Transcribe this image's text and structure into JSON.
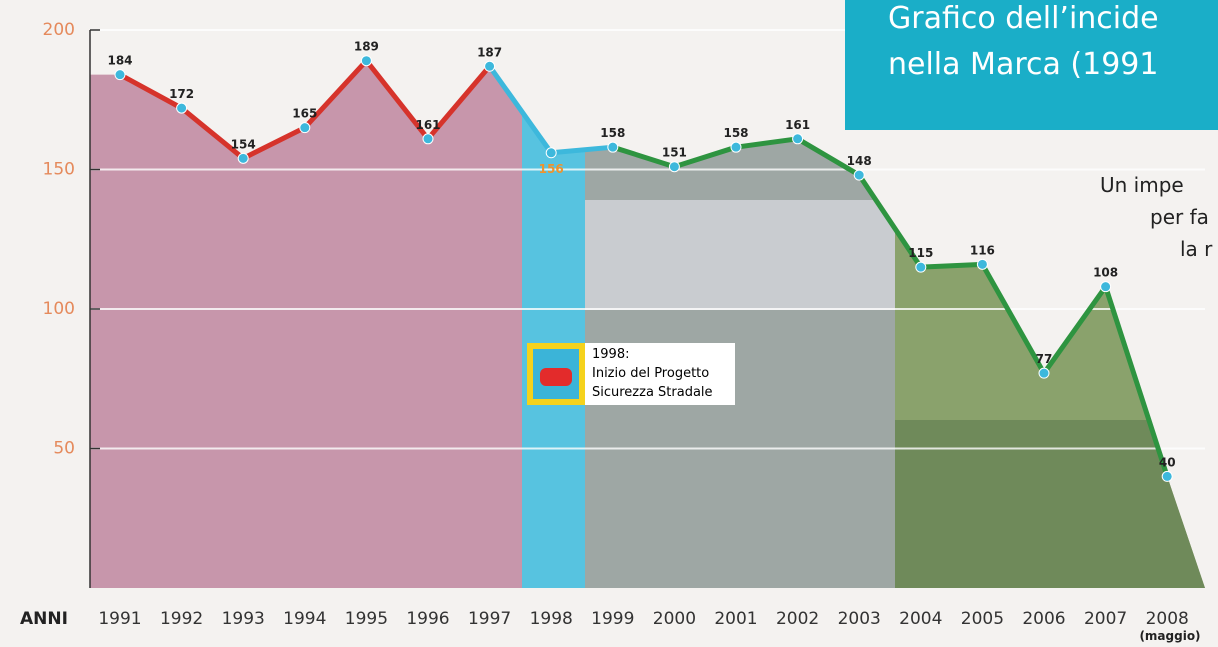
{
  "chart_data": {
    "type": "line",
    "title_lines": [
      "Grafico dell’incide",
      "nella Marca (1991"
    ],
    "side_text_lines": [
      "Un impe",
      "per fa",
      "la r"
    ],
    "x_axis_label": "ANNI",
    "x_note": "(maggio)",
    "annotation_lines": [
      "1998:",
      "Inizio del Progetto",
      "Sicurezza Stradale"
    ],
    "categories": [
      "1991",
      "1992",
      "1993",
      "1994",
      "1995",
      "1996",
      "1997",
      "1998",
      "1999",
      "2000",
      "2001",
      "2002",
      "2003",
      "2004",
      "2005",
      "2006",
      "2007",
      "2008"
    ],
    "series": [
      {
        "values": [
          184,
          172,
          154,
          165,
          189,
          161,
          187,
          156,
          158,
          151,
          158,
          161,
          148,
          115,
          116,
          77,
          108,
          40
        ],
        "segment_colors": [
          "#d6332b",
          "#d6332b",
          "#d6332b",
          "#d6332b",
          "#d6332b",
          "#d6332b",
          "#3db8dc",
          "#3db8dc",
          "#2e9440",
          "#2e9440",
          "#2e9440",
          "#2e9440",
          "#2e9440",
          "#2e9440",
          "#2e9440",
          "#2e9440",
          "#2e9440"
        ]
      }
    ],
    "highlight": {
      "index": 7,
      "color": "#f0932b"
    },
    "ylim": [
      0,
      200
    ],
    "yticks": [
      50,
      100,
      150,
      200
    ],
    "grid": true
  }
}
